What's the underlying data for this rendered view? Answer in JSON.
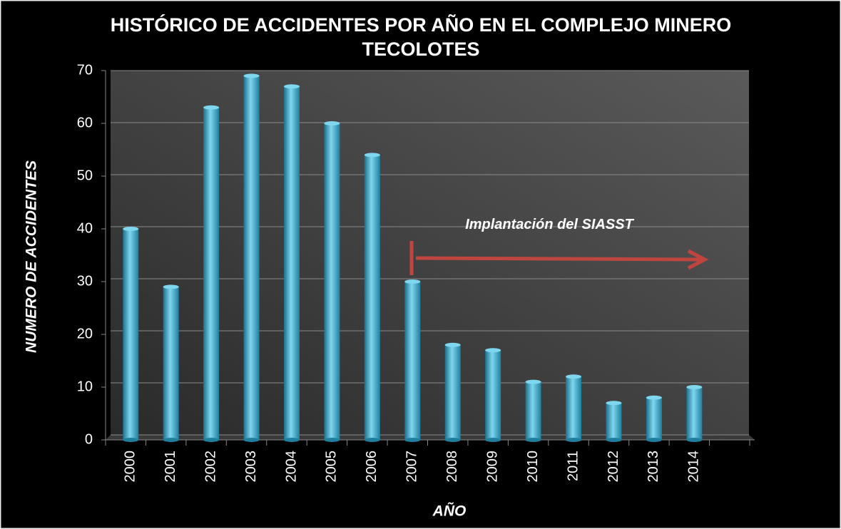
{
  "chart_data": {
    "type": "bar",
    "title": "HISTÓRICO DE ACCIDENTES POR AÑO EN EL COMPLEJO MINERO TECOLOTES",
    "x_label": "AÑO",
    "y_label": "NUMERO DE ACCIDENTES",
    "annotation": "Implantación del SIASST",
    "categories": [
      "2000",
      "2001",
      "2002",
      "2003",
      "2004",
      "2005",
      "2006",
      "2007",
      "2008",
      "2009",
      "2010",
      "2011",
      "2012",
      "2013",
      "2014"
    ],
    "values": [
      40,
      29,
      63,
      69,
      67,
      60,
      54,
      30,
      18,
      17,
      11,
      12,
      7,
      8,
      10
    ],
    "color": "#3fb4d8",
    "ylim": [
      0,
      70
    ],
    "yticks": [
      0,
      10,
      20,
      30,
      40,
      50,
      60,
      70
    ],
    "grid": true
  }
}
